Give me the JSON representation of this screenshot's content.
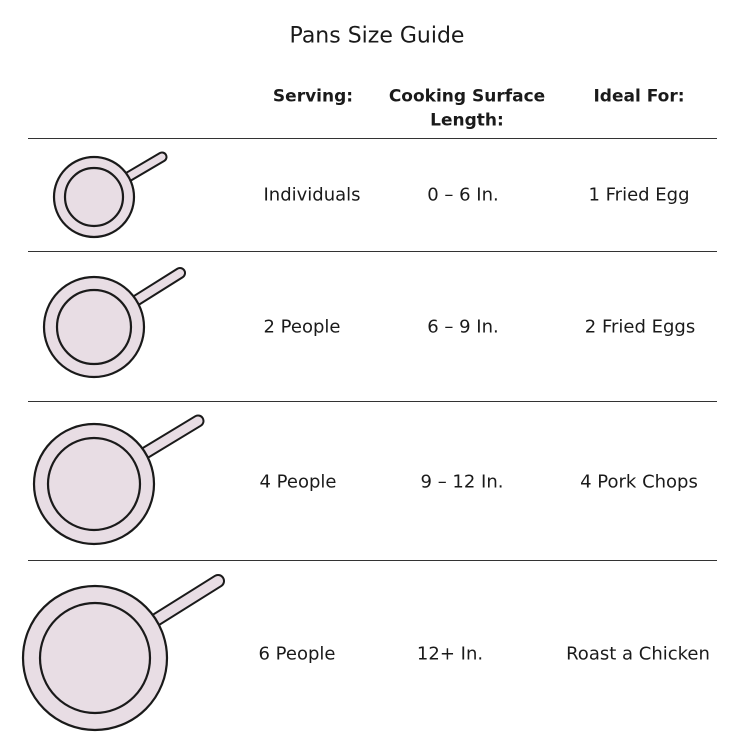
{
  "title": "Pans Size Guide",
  "headers": {
    "serving": "Serving:",
    "surface_line1": "Cooking Surface",
    "surface_line2": "Length:",
    "ideal": "Ideal For:"
  },
  "rows": [
    {
      "serving": "Individuals",
      "surface": "0 – 6 In.",
      "ideal": "1 Fried Egg"
    },
    {
      "serving": "2 People",
      "surface": "6 – 9 In.",
      "ideal": "2 Fried Eggs"
    },
    {
      "serving": "4 People",
      "surface": "9 – 12 In.",
      "ideal": "4 Pork Chops"
    },
    {
      "serving": "6 People",
      "surface": "12+ In.",
      "ideal": "Roast a Chicken"
    }
  ],
  "colors": {
    "pan_fill": "#e8dde4",
    "outline": "#1a1a1a"
  }
}
